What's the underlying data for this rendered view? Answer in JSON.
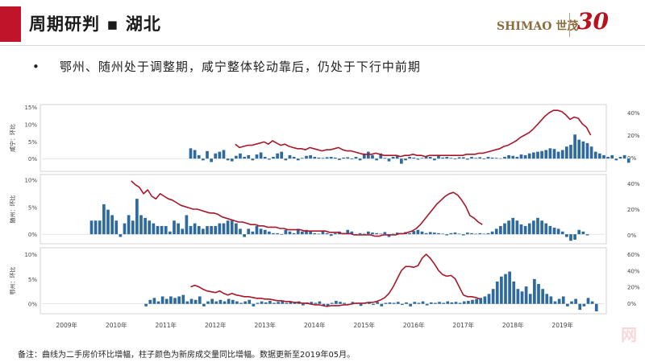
{
  "header": {
    "title": "周期研判 ▪ 湖北",
    "logo_brand": "SHIMAO 世茂",
    "logo_anniv": "30"
  },
  "bullet": "鄂州、随州处于调整期，咸宁整体轮动靠后，仍处于下行中前期",
  "footnote": "备注：曲线为二手房价环比增幅，柱子颜色为新房成交量同比增幅。数据更新至2019年05月。",
  "watermark": "网",
  "colors": {
    "bar": "#2e6a9e",
    "line": "#a8182a",
    "accent": "#c0142a"
  },
  "chart_data": [
    {
      "type": "bar+line",
      "ylabel": "咸宁：环比",
      "left_ticks": [
        "15%",
        "10%",
        "5%",
        "0%"
      ],
      "right_ticks": [
        "40%",
        "20%",
        "0%"
      ],
      "ylim_left": [
        -0.03,
        0.15
      ],
      "ylim_right": [
        -0.1,
        0.45
      ],
      "bar_start": 2011.5,
      "bars": [
        0.03,
        0.025,
        0.01,
        -0.005,
        0.022,
        -0.01,
        0.015,
        0.02,
        0.025,
        -0.005,
        -0.008,
        0.008,
        0.015,
        0.005,
        0.01,
        -0.005,
        0.012,
        0.018,
        0.005,
        -0.003,
        0.005,
        0.015,
        0.02,
        -0.005,
        0.01,
        0.005,
        -0.005,
        0.002,
        0.008,
        0.01,
        0.005,
        0.003,
        0.002,
        0.004,
        0.005,
        0.003,
        -0.004,
        0.003,
        0.004,
        -0.002,
        0.005,
        -0.005,
        0.015,
        0.02,
        0.01,
        -0.005,
        0.015,
        0.002,
        -0.008,
        0.005,
        0.01,
        -0.015,
        -0.005,
        0.005,
        0.003,
        -0.003,
        0.002,
        0.006,
        0.005,
        -0.005,
        0.008,
        0.003,
        0.005,
        0.002,
        -0.002,
        0.004,
        0.004,
        -0.003,
        0.005,
        0.002,
        0.004,
        -0.002,
        0.005,
        0.003,
        0.002,
        0.001,
        0.005,
        0.01,
        0.008,
        0.005,
        0.012,
        0.01,
        0.015,
        0.018,
        0.02,
        0.022,
        0.025,
        0.03,
        0.028,
        0.02,
        0.025,
        0.035,
        0.04,
        0.07,
        0.055,
        0.05,
        0.045,
        0.035,
        0.02,
        0.015,
        0.01,
        0.005,
        0.01,
        -0.005,
        0.005,
        0.01,
        -0.012
      ],
      "line_start": 2012.4,
      "line": [
        0.12,
        0.09,
        0.1,
        0.11,
        0.11,
        0.12,
        0.13,
        0.14,
        0.12,
        0.15,
        0.13,
        0.11,
        0.12,
        0.1,
        0.09,
        0.08,
        0.08,
        0.07,
        0.09,
        0.08,
        0.07,
        0.06,
        0.07,
        0.07,
        0.08,
        0.09,
        0.07,
        0.06,
        0.06,
        0.05,
        0.04,
        0.03,
        0.03,
        0.03,
        0.04,
        0.03,
        0.02,
        0.02,
        0.02,
        0.02,
        0.01,
        0.02,
        0.02,
        0.03,
        0.02,
        0.02,
        0.01,
        0.02,
        0.02,
        0.02,
        0.02,
        0.02,
        0.02,
        0.02,
        0.02,
        0.02,
        0.03,
        0.03,
        0.03,
        0.04,
        0.04,
        0.05,
        0.06,
        0.07,
        0.08,
        0.1,
        0.11,
        0.13,
        0.15,
        0.18,
        0.2,
        0.22,
        0.25,
        0.29,
        0.33,
        0.37,
        0.4,
        0.42,
        0.42,
        0.41,
        0.38,
        0.34,
        0.36,
        0.35,
        0.3,
        0.27,
        0.2
      ]
    },
    {
      "type": "bar+line",
      "ylabel": "随州：环比",
      "left_ticks": [
        "10%",
        "5%",
        "0%"
      ],
      "right_ticks": [
        "40%",
        "20%",
        "0%"
      ],
      "ylim_left": [
        -0.013,
        0.105
      ],
      "ylim_right": [
        -0.05,
        0.45
      ],
      "bar_start": 2009.5,
      "bars": [
        0.025,
        0.025,
        0.025,
        0.055,
        0.045,
        0.035,
        0.025,
        -0.005,
        0.02,
        0.035,
        0.025,
        0.065,
        0.035,
        0.03,
        0.025,
        0.02,
        0.015,
        0.015,
        0.015,
        0.005,
        0.025,
        0.02,
        0.01,
        0.035,
        0.015,
        0.02,
        0.015,
        0.01,
        0.015,
        0.015,
        0.015,
        0.02,
        0.02,
        0.025,
        0.025,
        0.02,
        0.01,
        -0.005,
        0.01,
        0.005,
        0.015,
        0.01,
        0.008,
        0.005,
        0.002,
        0.002,
        -0.001,
        0.008,
        0.005,
        0.002,
        0.01,
        0.005,
        0.008,
        0.005,
        0.002,
        0.001,
        0.005,
        0.002,
        -0.003,
        0.002,
        0.005,
        0.002,
        0.008,
        0.005,
        -0.002,
        0.002,
        0.001,
        0.005,
        0.003,
        0.002,
        0.001,
        0.004,
        -0.005,
        0.001,
        0.003,
        0.002,
        0.004,
        0.002,
        0.006,
        0.008,
        0.005,
        0.002,
        0.004,
        0.003,
        0.002,
        0.001,
        -0.002,
        0.002,
        0.003,
        0.001,
        -0.002,
        0.003,
        0.002,
        0.001,
        0.002,
        0.001,
        0.002,
        0.005,
        0.01,
        0.015,
        0.02,
        0.025,
        0.03,
        0.025,
        0.018,
        0.015,
        0.02,
        0.025,
        0.03,
        0.025,
        0.02,
        0.015,
        0.012,
        0.01,
        0.005,
        -0.005,
        -0.012,
        -0.01,
        0.008,
        0.005,
        -0.002
      ],
      "line_start": 2010.3,
      "line": [
        0.42,
        0.39,
        0.37,
        0.32,
        0.35,
        0.3,
        0.28,
        0.32,
        0.3,
        0.28,
        0.27,
        0.25,
        0.23,
        0.22,
        0.21,
        0.2,
        0.2,
        0.19,
        0.18,
        0.17,
        0.17,
        0.16,
        0.14,
        0.13,
        0.12,
        0.11,
        0.1,
        0.1,
        0.09,
        0.08,
        0.08,
        0.07,
        0.07,
        0.06,
        0.06,
        0.06,
        0.05,
        0.05,
        0.04,
        0.04,
        0.04,
        0.04,
        0.03,
        0.03,
        0.03,
        0.03,
        0.03,
        0.03,
        0.02,
        0.02,
        0.02,
        0.01,
        0.01,
        0.01,
        0.0,
        0.0,
        0.0,
        0.0,
        0.0,
        -0.01,
        -0.01,
        0.0,
        0.0,
        0.0,
        0.0,
        0.01,
        0.01,
        0.02,
        0.03,
        0.05,
        0.08,
        0.12,
        0.16,
        0.2,
        0.24,
        0.27,
        0.3,
        0.32,
        0.33,
        0.31,
        0.27,
        0.22,
        0.15,
        0.13,
        0.1,
        0.08
      ]
    },
    {
      "type": "bar+line",
      "ylabel": "鄂州：环比",
      "left_ticks": [
        "10%",
        "5%",
        "0%"
      ],
      "right_ticks": [
        "60%",
        "40%",
        "20%",
        "0%"
      ],
      "ylim_left": [
        -0.015,
        0.108
      ],
      "ylim_right": [
        -0.1,
        0.65
      ],
      "bar_start": 2010.6,
      "bars": [
        -0.005,
        0.008,
        0.012,
        0.005,
        0.015,
        0.01,
        0.015,
        0.012,
        0.015,
        0.018,
        0.005,
        0.01,
        0.008,
        0.015,
        -0.005,
        0.005,
        0.01,
        0.005,
        0.008,
        0.005,
        0.01,
        0.008,
        0.005,
        0.002,
        0.005,
        0.008,
        -0.005,
        0.002,
        0.005,
        0.003,
        0.006,
        0.002,
        0.004,
        0.005,
        0.002,
        0.004,
        0.002,
        0.005,
        -0.003,
        0.003,
        0.004,
        0.002,
        0.005,
        -0.003,
        -0.005,
        0.002,
        0.006,
        0.004,
        0.002,
        -0.002,
        0.004,
        0.002,
        -0.004,
        0.002,
        0.003,
        -0.002,
        0.004,
        -0.005,
        0.002,
        0.003,
        0.002,
        0.004,
        -0.002,
        0.003,
        -0.005,
        0.004,
        0.002,
        0.005,
        -0.003,
        0.003,
        0.002,
        0.004,
        0.002,
        0.005,
        0.003,
        0.004,
        0.002,
        0.005,
        0.006,
        0.008,
        0.01,
        0.012,
        0.015,
        0.02,
        0.03,
        0.045,
        0.055,
        0.06,
        0.065,
        0.045,
        0.03,
        0.025,
        0.035,
        0.02,
        0.05,
        0.04,
        0.03,
        0.02,
        0.015,
        0.005,
        0.01,
        0.015,
        -0.005,
        0.005,
        0.01,
        -0.012,
        -0.005,
        0.012,
        0.005,
        -0.015
      ],
      "line_start": 2011.5,
      "line": [
        0.2,
        0.22,
        0.2,
        0.17,
        0.15,
        0.14,
        0.13,
        0.15,
        0.12,
        0.1,
        0.12,
        0.1,
        0.09,
        0.08,
        0.08,
        0.07,
        0.06,
        0.06,
        0.05,
        0.05,
        0.04,
        0.03,
        0.03,
        0.02,
        0.02,
        0.01,
        0.01,
        0.0,
        0.0,
        -0.01,
        -0.02,
        -0.02,
        -0.03,
        -0.04,
        -0.03,
        -0.03,
        -0.03,
        -0.02,
        -0.02,
        -0.01,
        0.0,
        0.0,
        0.0,
        0.01,
        0.01,
        0.02,
        0.04,
        0.07,
        0.12,
        0.2,
        0.3,
        0.4,
        0.45,
        0.45,
        0.44,
        0.46,
        0.55,
        0.6,
        0.55,
        0.48,
        0.4,
        0.35,
        0.33,
        0.34,
        0.3,
        0.2,
        0.1,
        0.08,
        0.08,
        0.07,
        0.05
      ]
    }
  ],
  "x_axis": {
    "start": 2008.5,
    "end": 2019.85,
    "labels": [
      "2009年",
      "2010年",
      "2011年",
      "2012年",
      "2013年",
      "2014年",
      "2015年",
      "2016年",
      "2017年",
      "2018年",
      "2019年"
    ]
  }
}
